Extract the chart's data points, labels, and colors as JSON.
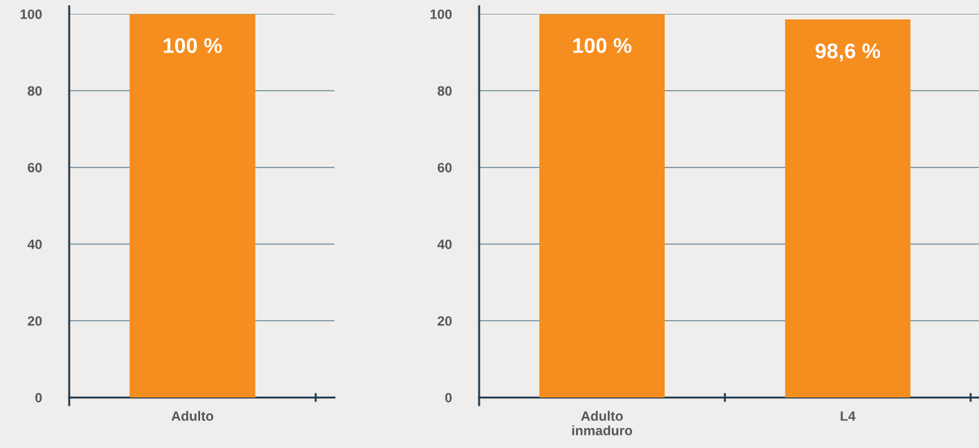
{
  "chart_data": [
    {
      "type": "bar",
      "categories": [
        "Adulto"
      ],
      "values": [
        100
      ],
      "value_labels": [
        "100 %"
      ],
      "color": "#f58d1f",
      "ylim": [
        0,
        100
      ],
      "yticks": [
        0,
        20,
        40,
        60,
        80,
        100
      ],
      "grid": "y"
    },
    {
      "type": "bar",
      "categories": [
        "Adulto\ninmaduro",
        "L4"
      ],
      "values": [
        100,
        98.6
      ],
      "value_labels": [
        "100 %",
        "98,6 %"
      ],
      "color": "#f58d1f",
      "ylim": [
        0,
        100
      ],
      "yticks": [
        0,
        20,
        40,
        60,
        80,
        100
      ],
      "grid": "y"
    }
  ]
}
